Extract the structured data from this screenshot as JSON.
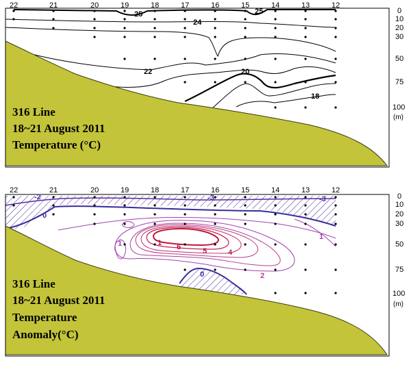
{
  "panels": [
    {
      "id": "temperature",
      "title_lines": [
        "316 Line",
        "18~21 August 2011",
        "Temperature (°C)"
      ],
      "stations": [
        "22",
        "21",
        "20",
        "19",
        "18",
        "17",
        "16",
        "15",
        "14",
        "13",
        "12"
      ],
      "depths": [
        "0",
        "10",
        "20",
        "30",
        "50",
        "75",
        "100"
      ],
      "depth_unit": "(m)",
      "contour_labels": [
        "25",
        "24",
        "25",
        "22",
        "20",
        "18"
      ]
    },
    {
      "id": "anomaly",
      "title_lines": [
        "316 Line",
        "18~21 August 2011",
        "Temperature",
        "Anomaly(°C)"
      ],
      "stations": [
        "22",
        "21",
        "20",
        "19",
        "18",
        "17",
        "16",
        "15",
        "14",
        "13",
        "12"
      ],
      "depths": [
        "0",
        "10",
        "20",
        "30",
        "50",
        "75",
        "100"
      ],
      "depth_unit": "(m)",
      "contour_labels": [
        "-2",
        "-3",
        "-3",
        "0",
        "1",
        "1",
        "6",
        "5",
        "4",
        "1",
        "2",
        "0"
      ]
    }
  ],
  "colors": {
    "terrain": "#c3c43a",
    "neg_contour": "#5a2aa0",
    "pos_low": "#a040b0",
    "pos_high": "#c0163c"
  }
}
